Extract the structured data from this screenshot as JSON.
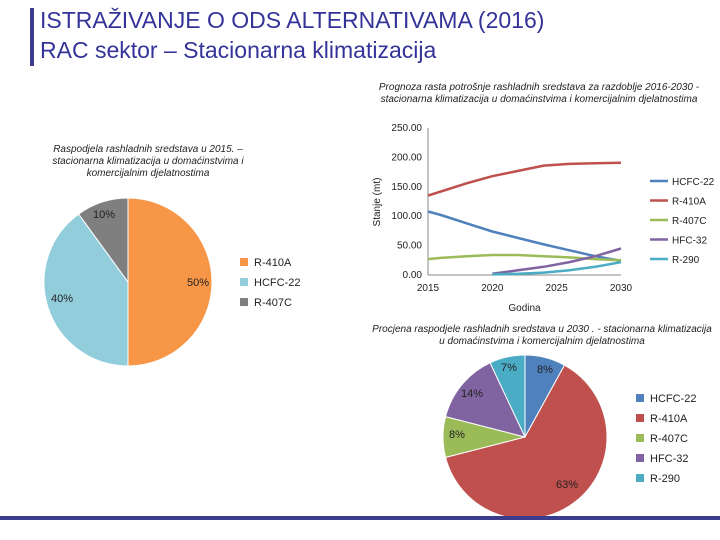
{
  "header": {
    "title": "ISTRAŽIVANJE O ODS ALTERNATIVAMA (2016)",
    "subtitle": "RAC sektor – Stacionarna klimatizacija"
  },
  "chart_data": [
    {
      "type": "pie",
      "title": "Raspodjela rashladnih sredstava u 2015. – stacionarna klimatizacija u domaćinstvima i komercijalnim djelatnostima",
      "categories": [
        "R-410A",
        "HCFC-22",
        "R-407C"
      ],
      "values": [
        50,
        40,
        10
      ],
      "data_labels": [
        "50%",
        "40%",
        "10%"
      ],
      "colors": [
        "#f79646",
        "#92cddc",
        "#7f7f7f"
      ],
      "legend": "right"
    },
    {
      "type": "line",
      "title": "Prognoza rasta potrošnje rashladnih sredstava za razdoblje 2016-2030 - stacionarna klimatizacija u domaćinstvima i komercijalnim djelatnostima",
      "xlabel": "Godina",
      "ylabel": "Stanje (mt)",
      "x_ticks": [
        "2015",
        "2020",
        "2025",
        "2030"
      ],
      "xlim": [
        2015,
        2030
      ],
      "ylim": [
        0,
        250
      ],
      "y_ticks": [
        "0.00",
        "50.00",
        "100.00",
        "150.00",
        "200.00",
        "250.00"
      ],
      "legend": "right",
      "grid": false,
      "series": [
        {
          "name": "HCFC-22",
          "color": "#4f81bd",
          "x": [
            2015,
            2016,
            2018,
            2020,
            2022,
            2024,
            2026,
            2028,
            2030
          ],
          "y": [
            108,
            102,
            88,
            74,
            63,
            52,
            42,
            32,
            24
          ]
        },
        {
          "name": "R-410A",
          "color": "#c0504d",
          "x": [
            2015,
            2016,
            2018,
            2020,
            2022,
            2024,
            2026,
            2028,
            2030
          ],
          "y": [
            135,
            142,
            156,
            168,
            177,
            186,
            189,
            190,
            191
          ]
        },
        {
          "name": "R-407C",
          "color": "#9bbb59",
          "x": [
            2015,
            2016,
            2018,
            2020,
            2022,
            2024,
            2026,
            2028,
            2030
          ],
          "y": [
            27,
            29,
            32,
            34,
            34,
            32,
            30,
            27,
            25
          ]
        },
        {
          "name": "HFC-32",
          "color": "#8064a2",
          "x": [
            2020,
            2022,
            2024,
            2026,
            2028,
            2030
          ],
          "y": [
            2,
            8,
            14,
            22,
            32,
            45
          ]
        },
        {
          "name": "R-290",
          "color": "#4bacc6",
          "x": [
            2020,
            2022,
            2024,
            2026,
            2028,
            2030
          ],
          "y": [
            1,
            2,
            4,
            8,
            14,
            22
          ]
        }
      ]
    },
    {
      "type": "pie",
      "title": "Procjena raspodjele rashladnih sredstava u 2030 . - stacionarna klimatizacija u domaćinstvima i komercijalnim djelatnostima",
      "categories": [
        "HCFC-22",
        "R-410A",
        "R-407C",
        "HFC-32",
        "R-290"
      ],
      "values": [
        8,
        63,
        8,
        14,
        7
      ],
      "data_labels": [
        "8%",
        "63%",
        "8%",
        "14%",
        "7%"
      ],
      "colors": [
        "#4f81bd",
        "#c0504d",
        "#9bbb59",
        "#8064a2",
        "#4bacc6"
      ],
      "legend": "right"
    }
  ]
}
